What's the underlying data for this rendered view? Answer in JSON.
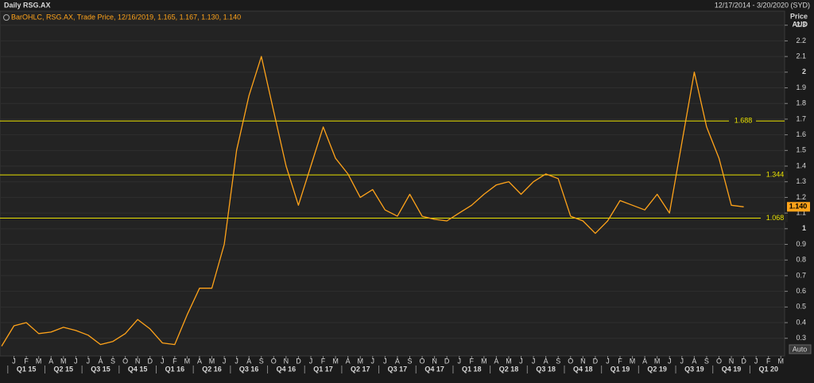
{
  "header": {
    "title": "Daily RSG.AX",
    "range": "12/17/2014 - 3/20/2020 (SYD)"
  },
  "chart_data": {
    "type": "line",
    "legend_text": "BarOHLC, RSG.AX, Trade Price, 12/16/2019, 1.165, 1.167, 1.130, 1.140",
    "y_axis_label": [
      "Price",
      "AUD"
    ],
    "categories": [
      null,
      "J",
      "F",
      "M",
      "A",
      "M",
      "J",
      "J",
      "A",
      "S",
      "O",
      "N",
      "D",
      "J",
      "F",
      "M",
      "A",
      "M",
      "J",
      "J",
      "A",
      "S",
      "O",
      "N",
      "D",
      "J",
      "F",
      "M",
      "A",
      "M",
      "J",
      "J",
      "A",
      "S",
      "O",
      "N",
      "D",
      "J",
      "F",
      "M",
      "A",
      "M",
      "J",
      "J",
      "A",
      "S",
      "O",
      "N",
      "D",
      "J",
      "F",
      "M",
      "A",
      "M",
      "J",
      "J",
      "A",
      "S",
      "O",
      "N",
      "D",
      "J",
      "F",
      "M"
    ],
    "quarters": [
      "Q1 15",
      "Q2 15",
      "Q3 15",
      "Q4 15",
      "Q1 16",
      "Q2 16",
      "Q3 16",
      "Q4 16",
      "Q1 17",
      "Q2 17",
      "Q3 17",
      "Q4 17",
      "Q1 18",
      "Q2 18",
      "Q3 18",
      "Q4 18",
      "Q1 19",
      "Q2 19",
      "Q3 19",
      "Q4 19",
      "Q1 20"
    ],
    "series": [
      {
        "name": "RSG.AX",
        "color": "#ffa31a",
        "values": [
          0.25,
          0.38,
          0.4,
          0.33,
          0.34,
          0.37,
          0.35,
          0.32,
          0.26,
          0.28,
          0.33,
          0.42,
          0.36,
          0.27,
          0.26,
          0.45,
          0.62,
          0.62,
          0.9,
          1.5,
          1.85,
          2.1,
          1.75,
          1.4,
          1.15,
          1.4,
          1.65,
          1.45,
          1.35,
          1.2,
          1.25,
          1.12,
          1.08,
          1.22,
          1.08,
          1.06,
          1.05,
          1.1,
          1.15,
          1.22,
          1.28,
          1.3,
          1.22,
          1.3,
          1.35,
          1.32,
          1.08,
          1.05,
          0.97,
          1.05,
          1.18,
          1.15,
          1.12,
          1.22,
          1.1,
          1.55,
          2.0,
          1.65,
          1.45,
          1.15,
          1.14,
          null,
          null,
          null
        ]
      }
    ],
    "levels": [
      1.688,
      1.344,
      1.068
    ],
    "last_price": {
      "value": 1.14,
      "label": "1.140"
    },
    "ylim": [
      0.187,
      2.39
    ],
    "yticks": [
      0.3,
      0.4,
      0.5,
      0.6,
      0.7,
      0.8,
      0.9,
      1,
      1.1,
      1.2,
      1.3,
      1.4,
      1.5,
      1.6,
      1.7,
      1.8,
      1.9,
      2,
      2.1,
      2.2,
      2.3
    ],
    "grid": true,
    "button": "Auto"
  }
}
